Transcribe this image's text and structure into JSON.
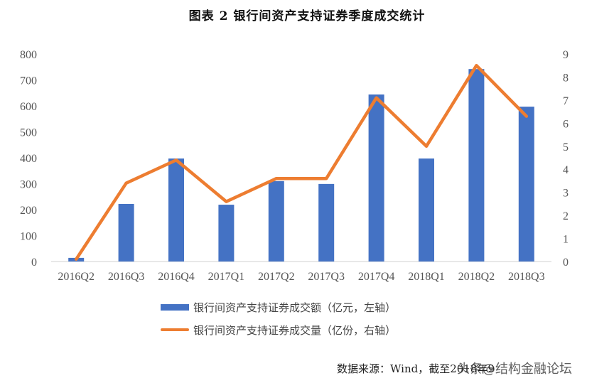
{
  "title": "图表 2 银行间资产支持证券季度成交统计",
  "chart_data": {
    "type": "bar",
    "title": "图表 2 银行间资产支持证券季度成交统计",
    "categories": [
      "2016Q2",
      "2016Q3",
      "2016Q4",
      "2017Q1",
      "2017Q2",
      "2017Q3",
      "2017Q4",
      "2018Q1",
      "2018Q2",
      "2018Q3"
    ],
    "series": [
      {
        "name": "银行间资产支持证券成交额（亿元，左轴）",
        "type": "bar",
        "axis": "left",
        "color": "#4472c4",
        "values": [
          14,
          222,
          397,
          219,
          310,
          299,
          644,
          397,
          742,
          597
        ]
      },
      {
        "name": "银行间资产支持证券成交量（亿份，右轴）",
        "type": "line",
        "axis": "right",
        "color": "#ed7d31",
        "values": [
          0.1,
          3.4,
          4.4,
          2.6,
          3.6,
          3.6,
          7.1,
          5.0,
          8.5,
          6.3
        ]
      }
    ],
    "left_axis": {
      "ylim": [
        0,
        800
      ],
      "ticks": [
        "0",
        "100",
        "200",
        "300",
        "400",
        "500",
        "600",
        "700",
        "800"
      ]
    },
    "right_axis": {
      "ylim": [
        0,
        9
      ],
      "ticks": [
        "0",
        "1",
        "2",
        "3",
        "4",
        "5",
        "6",
        "7",
        "8",
        "9"
      ]
    },
    "xlabel": "",
    "ylabel": "",
    "grid": false,
    "legend_position": "bottom"
  },
  "legend": {
    "bar_label": "银行间资产支持证券成交额（亿元，左轴）",
    "line_label": "银行间资产支持证券成交量（亿份，右轴）"
  },
  "source": "数据来源：Wind，截至2018年9",
  "watermark": "头条@结构金融论坛"
}
